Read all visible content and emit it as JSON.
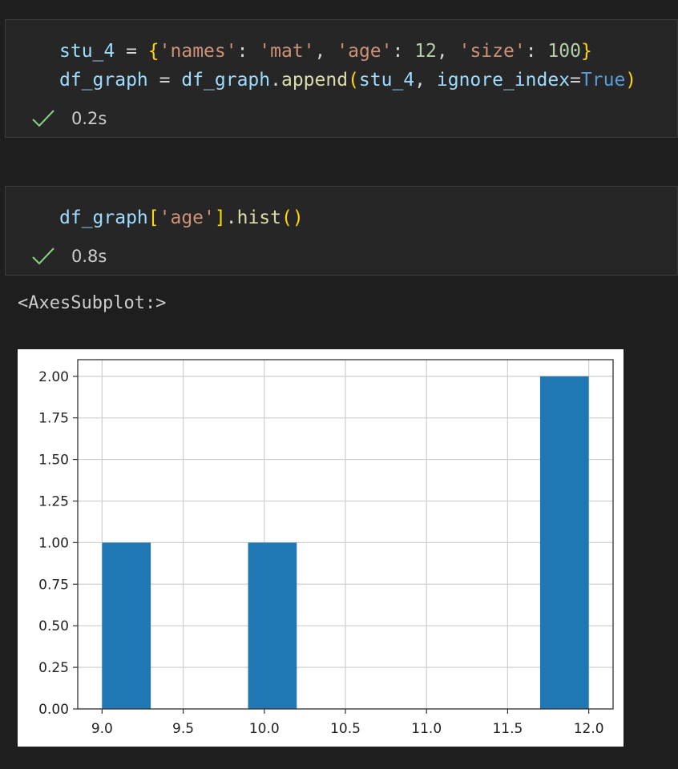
{
  "cells": [
    {
      "lines": [
        [
          {
            "t": "stu_4",
            "c": "var"
          },
          {
            "t": " = ",
            "c": "op"
          },
          {
            "t": "{",
            "c": "brace"
          },
          {
            "t": "'names'",
            "c": "str"
          },
          {
            "t": ": ",
            "c": "op"
          },
          {
            "t": "'mat'",
            "c": "str"
          },
          {
            "t": ", ",
            "c": "op"
          },
          {
            "t": "'age'",
            "c": "str"
          },
          {
            "t": ": ",
            "c": "op"
          },
          {
            "t": "12",
            "c": "num"
          },
          {
            "t": ", ",
            "c": "op"
          },
          {
            "t": "'size'",
            "c": "str"
          },
          {
            "t": ": ",
            "c": "op"
          },
          {
            "t": "100",
            "c": "num"
          },
          {
            "t": "}",
            "c": "brace"
          }
        ],
        [
          {
            "t": "df_graph",
            "c": "var"
          },
          {
            "t": " = ",
            "c": "op"
          },
          {
            "t": "df_graph",
            "c": "var"
          },
          {
            "t": ".",
            "c": "op"
          },
          {
            "t": "append",
            "c": "fn"
          },
          {
            "t": "(",
            "c": "brace"
          },
          {
            "t": "stu_4",
            "c": "var"
          },
          {
            "t": ", ",
            "c": "op"
          },
          {
            "t": "ignore_index",
            "c": "var"
          },
          {
            "t": "=",
            "c": "op"
          },
          {
            "t": "True",
            "c": "kw"
          },
          {
            "t": ")",
            "c": "brace"
          }
        ]
      ],
      "status": {
        "icon": "check-icon",
        "time": "0.2s"
      }
    },
    {
      "lines": [
        [
          {
            "t": "df_graph",
            "c": "var"
          },
          {
            "t": "[",
            "c": "brace"
          },
          {
            "t": "'age'",
            "c": "str"
          },
          {
            "t": "]",
            "c": "brace"
          },
          {
            "t": ".",
            "c": "op"
          },
          {
            "t": "hist",
            "c": "fn"
          },
          {
            "t": "()",
            "c": "brace"
          }
        ]
      ],
      "status": {
        "icon": "check-icon",
        "time": "0.8s"
      }
    }
  ],
  "output_text": "<AxesSubplot:>",
  "colors": {
    "bar": "#1f77b4",
    "check": "#89d185",
    "grid": "#cfcfcf"
  },
  "chart_data": {
    "type": "bar",
    "title": "",
    "xlabel": "",
    "ylabel": "",
    "grid": true,
    "xlim": [
      8.85,
      12.15
    ],
    "ylim": [
      0,
      2.1
    ],
    "xticks": [
      "9.0",
      "9.5",
      "10.0",
      "10.5",
      "11.0",
      "11.5",
      "12.0"
    ],
    "yticks": [
      "0.00",
      "0.25",
      "0.50",
      "0.75",
      "1.00",
      "1.25",
      "1.50",
      "1.75",
      "2.00"
    ],
    "bins": [
      {
        "x0": 9.0,
        "x1": 9.3,
        "value": 1
      },
      {
        "x0": 9.3,
        "x1": 9.6,
        "value": 0
      },
      {
        "x0": 9.6,
        "x1": 9.9,
        "value": 0
      },
      {
        "x0": 9.9,
        "x1": 10.2,
        "value": 1
      },
      {
        "x0": 10.2,
        "x1": 10.5,
        "value": 0
      },
      {
        "x0": 10.5,
        "x1": 10.8,
        "value": 0
      },
      {
        "x0": 10.8,
        "x1": 11.1,
        "value": 0
      },
      {
        "x0": 11.1,
        "x1": 11.4,
        "value": 0
      },
      {
        "x0": 11.4,
        "x1": 11.7,
        "value": 0
      },
      {
        "x0": 11.7,
        "x1": 12.0,
        "value": 2
      }
    ]
  }
}
